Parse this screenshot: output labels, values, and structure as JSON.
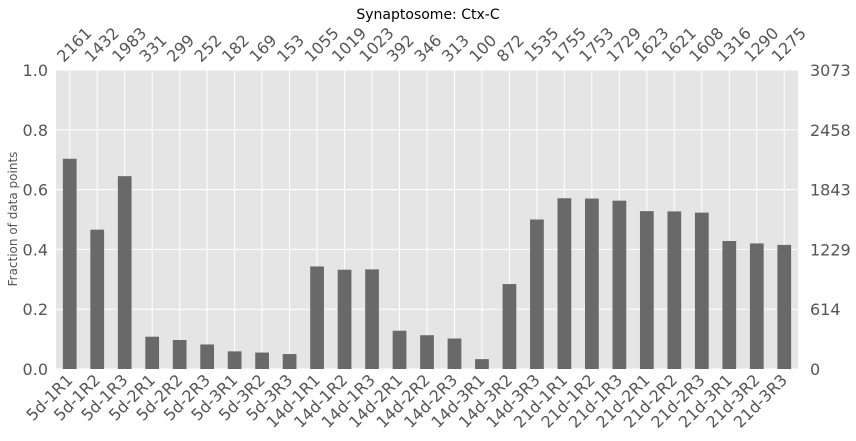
{
  "chart_data": {
    "type": "bar",
    "title": "Synaptosome: Ctx-C",
    "xlabel": "",
    "ylabel": "Fraction of data points",
    "categories": [
      "5d-1R1",
      "5d-1R2",
      "5d-1R3",
      "5d-2R1",
      "5d-2R2",
      "5d-2R3",
      "5d-3R1",
      "5d-3R2",
      "5d-3R3",
      "14d-1R1",
      "14d-1R2",
      "14d-1R3",
      "14d-2R1",
      "14d-2R2",
      "14d-2R3",
      "14d-3R1",
      "14d-3R2",
      "14d-3R3",
      "21d-1R1",
      "21d-1R2",
      "21d-1R3",
      "21d-2R1",
      "21d-2R2",
      "21d-2R3",
      "21d-3R1",
      "21d-3R2",
      "21d-3R3"
    ],
    "counts": [
      2161,
      1432,
      1983,
      331,
      299,
      252,
      182,
      169,
      153,
      1055,
      1019,
      1023,
      392,
      346,
      313,
      100,
      872,
      1535,
      1755,
      1753,
      1729,
      1623,
      1621,
      1608,
      1316,
      1290,
      1275
    ],
    "values": [
      0.703,
      0.466,
      0.645,
      0.108,
      0.097,
      0.082,
      0.059,
      0.055,
      0.05,
      0.343,
      0.332,
      0.333,
      0.128,
      0.113,
      0.102,
      0.033,
      0.284,
      0.5,
      0.571,
      0.57,
      0.563,
      0.528,
      0.527,
      0.523,
      0.428,
      0.42,
      0.415
    ],
    "ylim": [
      0,
      1.0
    ],
    "yticks": [
      "0.0",
      "0.2",
      "0.4",
      "0.6",
      "0.8",
      "1.0"
    ],
    "y2ticks": [
      "0",
      "614",
      "1229",
      "1843",
      "2458",
      "3073"
    ],
    "grid": true,
    "colors": {
      "bar": "#696969",
      "background": "#e5e5e5",
      "grid": "#ffffff"
    }
  }
}
